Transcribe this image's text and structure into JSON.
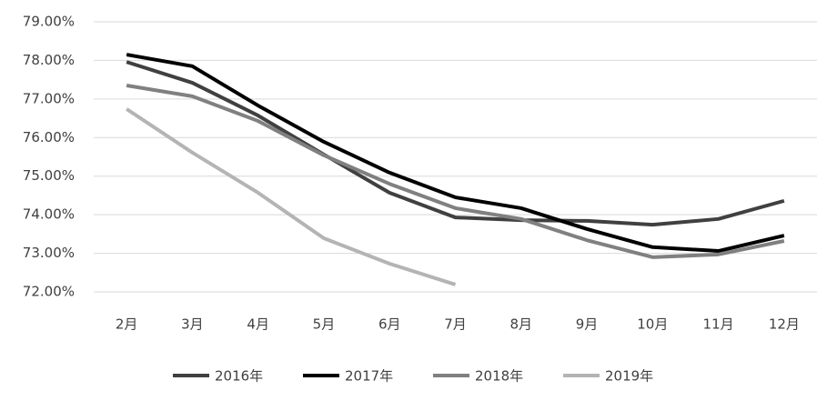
{
  "chart_data": {
    "type": "line",
    "categories": [
      "2月",
      "3月",
      "4月",
      "5月",
      "6月",
      "7月",
      "8月",
      "9月",
      "10月",
      "11月",
      "12月"
    ],
    "series": [
      {
        "name": "2016年",
        "color": "#404040",
        "values": [
          77.96,
          77.42,
          76.57,
          75.56,
          74.57,
          73.93,
          73.86,
          73.84,
          73.74,
          73.89,
          74.36
        ]
      },
      {
        "name": "2017年",
        "color": "#000000",
        "values": [
          78.15,
          77.85,
          76.83,
          75.89,
          75.09,
          74.45,
          74.17,
          73.63,
          73.16,
          73.06,
          73.46
        ]
      },
      {
        "name": "2018年",
        "color": "#808080",
        "values": [
          77.35,
          77.07,
          76.43,
          75.54,
          74.8,
          74.17,
          73.89,
          73.34,
          72.9,
          72.97,
          73.32
        ]
      },
      {
        "name": "2019年",
        "color": "#b4b4b4",
        "values": [
          76.74,
          75.61,
          74.57,
          73.39,
          72.73,
          72.19,
          null,
          null,
          null,
          null,
          null
        ]
      }
    ],
    "ylim": [
      72,
      79
    ],
    "yticks": [
      {
        "value": 72,
        "label": "72.00%"
      },
      {
        "value": 73,
        "label": "73.00%"
      },
      {
        "value": 74,
        "label": "74.00%"
      },
      {
        "value": 75,
        "label": "75.00%"
      },
      {
        "value": 76,
        "label": "76.00%"
      },
      {
        "value": 77,
        "label": "77.00%"
      },
      {
        "value": 78,
        "label": "78.00%"
      },
      {
        "value": 79,
        "label": "79.00%"
      }
    ],
    "grid": true,
    "legend": "bottom"
  }
}
